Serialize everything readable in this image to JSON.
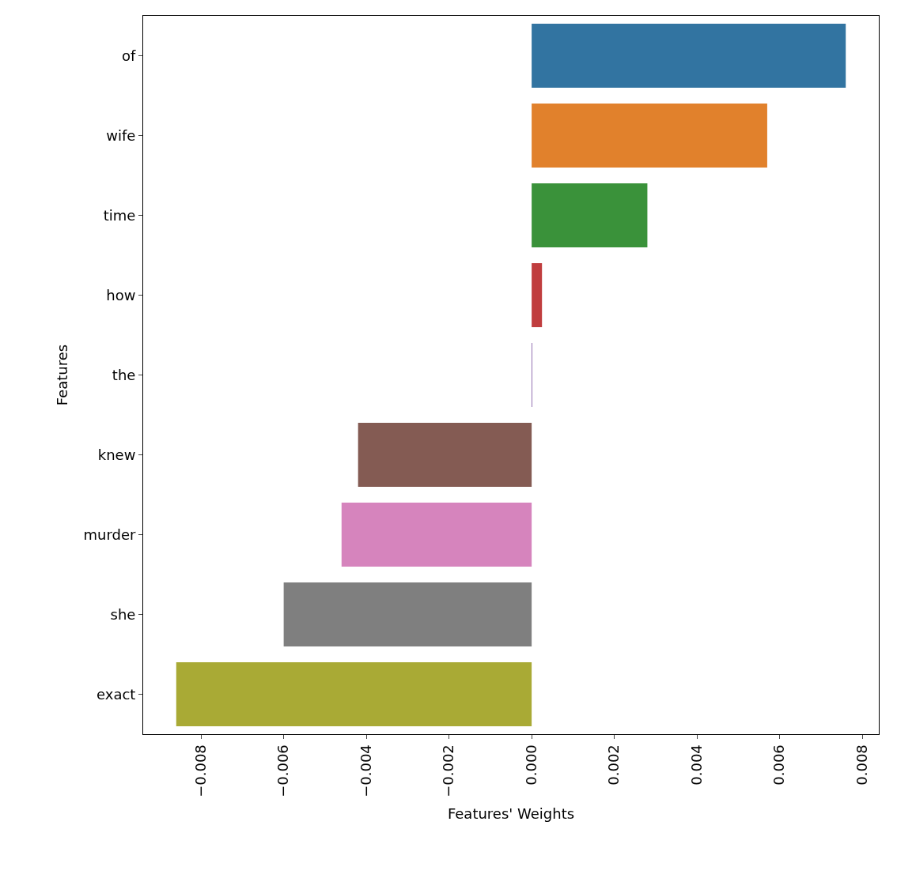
{
  "chart_data": {
    "type": "bar",
    "orientation": "horizontal",
    "xlabel": "Features' Weights",
    "ylabel": "Features",
    "categories": [
      "of",
      "wife",
      "time",
      "how",
      "the",
      "knew",
      "murder",
      "she",
      "exact"
    ],
    "values": [
      0.0076,
      0.0057,
      0.0028,
      0.00025,
      1e-05,
      -0.0042,
      -0.0046,
      -0.006,
      -0.0086
    ],
    "colors": [
      "#3274a1",
      "#e1812c",
      "#3a923a",
      "#c03d3e",
      "#9372b2",
      "#845b53",
      "#d684bd",
      "#7f7f7f",
      "#a9aa35"
    ],
    "xlim": [
      -0.0094,
      0.0084
    ],
    "xticks": [
      {
        "value": -0.008,
        "label": "−0.008"
      },
      {
        "value": -0.006,
        "label": "−0.006"
      },
      {
        "value": -0.004,
        "label": "−0.004"
      },
      {
        "value": -0.002,
        "label": "−0.002"
      },
      {
        "value": 0,
        "label": "0.000"
      },
      {
        "value": 0.002,
        "label": "0.002"
      },
      {
        "value": 0.004,
        "label": "0.004"
      },
      {
        "value": 0.006,
        "label": "0.006"
      },
      {
        "value": 0.008,
        "label": "0.008"
      }
    ],
    "legend": false
  }
}
